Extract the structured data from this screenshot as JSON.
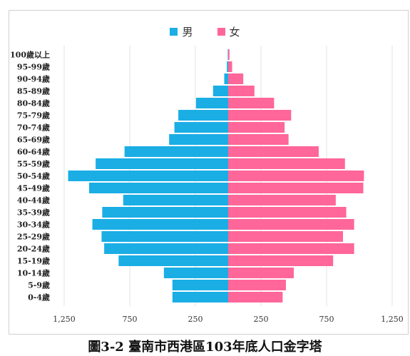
{
  "chart_data": {
    "type": "bar",
    "orientation": "horizontal-population-pyramid",
    "title": "圖3-2 臺南市西港區103年底人口金字塔",
    "legend_position": "top-center",
    "grid": true,
    "categories": [
      "100歲以上",
      "95-99歲",
      "90-94歲",
      "85-89歲",
      "80-84歲",
      "75-79歲",
      "70-74歲",
      "65-69歲",
      "60-64歲",
      "55-59歲",
      "50-54歲",
      "45-49歲",
      "40-44歲",
      "35-39歲",
      "30-34歲",
      "25-29歲",
      "20-24歲",
      "15-19歲",
      "10-14歲",
      "5-9歲",
      "0-4歲"
    ],
    "series": [
      {
        "name": "男",
        "color": "#1aaee5",
        "values": [
          3,
          10,
          30,
          115,
          245,
          380,
          410,
          450,
          790,
          1010,
          1220,
          1060,
          800,
          960,
          1035,
          965,
          945,
          835,
          490,
          425,
          425
        ]
      },
      {
        "name": "女",
        "color": "#ff6699",
        "values": [
          10,
          30,
          115,
          200,
          350,
          480,
          430,
          460,
          690,
          890,
          1035,
          1030,
          820,
          900,
          960,
          875,
          960,
          800,
          500,
          440,
          415
        ]
      }
    ],
    "x_ticks": [
      "1,250",
      "750",
      "250",
      "250",
      "750",
      "1,250"
    ],
    "xlim": [
      -1250,
      1250
    ]
  }
}
